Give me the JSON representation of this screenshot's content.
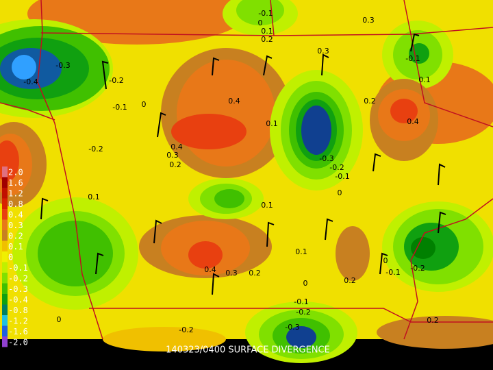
{
  "title": "140323/0400 SURFACE DIVERGENCE",
  "legend": {
    "items": [
      {
        "label": "2.0",
        "color": "#e07080"
      },
      {
        "label": "1.6",
        "color": "#a00000"
      },
      {
        "label": "1.2",
        "color": "#c01000"
      },
      {
        "label": "0.8",
        "color": "#d82000"
      },
      {
        "label": "0.4",
        "color": "#e84010"
      },
      {
        "label": "0.3",
        "color": "#e87818"
      },
      {
        "label": "0.2",
        "color": "#c88020"
      },
      {
        "label": "0.1",
        "color": "#f0c000"
      },
      {
        "label": "0",
        "color": "#f0f000"
      },
      {
        "label": "-0.1",
        "color": "#c0f000"
      },
      {
        "label": "-0.2",
        "color": "#80e000"
      },
      {
        "label": "-0.3",
        "color": "#40c000"
      },
      {
        "label": "-0.4",
        "color": "#10a010"
      },
      {
        "label": "-0.8",
        "color": "#008060"
      },
      {
        "label": "-1.2",
        "color": "#20c0e0"
      },
      {
        "label": "-1.6",
        "color": "#2060e0"
      },
      {
        "label": "-2.0",
        "color": "#9040d0"
      }
    ]
  },
  "contour_labels": [
    "-0.3",
    "-0.4",
    "-0.2",
    "-0.1",
    "0",
    "-0.2",
    "0.4",
    "0.4",
    "0.3",
    "0.2",
    "0.1",
    "-0.3",
    "-0.2",
    "-0.1",
    "0",
    "0.3",
    "0.2",
    "0.4",
    "-0.1",
    "0",
    "0.1",
    "-0.1",
    "0.1",
    "0.4",
    "0.3",
    "0.2",
    "0.1",
    "0",
    "0.2",
    "-0.1",
    "-0.2",
    "0",
    "-0.1",
    "-0.2",
    "-0.3",
    "0",
    "-0.2",
    "0.2",
    "0.1",
    "0.3",
    "0.1",
    "0.2"
  ]
}
